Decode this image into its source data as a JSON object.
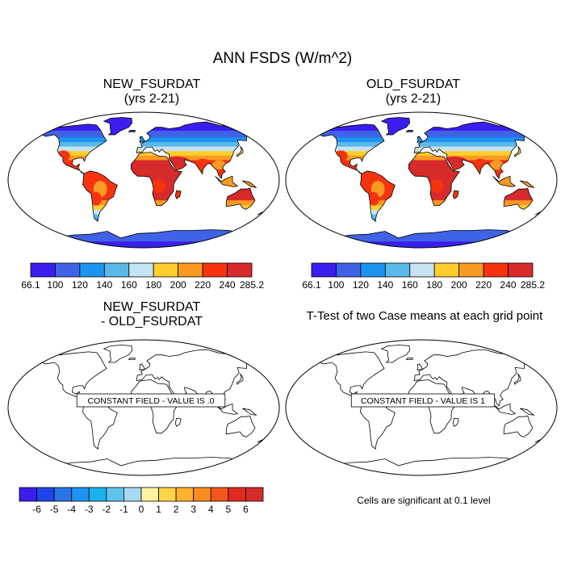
{
  "title": "ANN FSDS (W/m^2)",
  "panels": {
    "new": {
      "title_line1": "NEW_FSURDAT",
      "title_line2": "(yrs 2-21)"
    },
    "old": {
      "title_line1": "OLD_FSURDAT",
      "title_line2": "(yrs 2-21)"
    },
    "diff": {
      "title_line1": "NEW_FSURDAT",
      "title_line2": "- OLD_FSURDAT",
      "annotation": "CONSTANT FIELD - VALUE IS .0"
    },
    "ttest": {
      "title": "T-Test of two Case means at each grid point",
      "annotation": "CONSTANT FIELD - VALUE IS 1",
      "note": "Cells are significant at 0.1 level"
    }
  },
  "chart_data": [
    {
      "type": "heatmap",
      "name": "NEW_FSURDAT",
      "subtitle": "(yrs 2-21)",
      "variable": "ANN FSDS (W/m^2)",
      "colorbar": {
        "levels": [
          "66.1",
          "100",
          "120",
          "140",
          "160",
          "180",
          "200",
          "220",
          "240",
          "285.2"
        ],
        "colors": [
          "#3a1ef0",
          "#3f63e6",
          "#1b95f0",
          "#5ab9ea",
          "#c5e3f2",
          "#ffce2d",
          "#fa9a22",
          "#f7330f",
          "#d72a2a"
        ]
      },
      "colorbar_ticks": [
        "66.1",
        "100",
        "120",
        "140",
        "160",
        "180",
        "200",
        "220",
        "240",
        "285.2"
      ]
    },
    {
      "type": "heatmap",
      "name": "OLD_FSURDAT",
      "subtitle": "(yrs 2-21)",
      "variable": "ANN FSDS (W/m^2)",
      "colorbar_ticks": [
        "66.1",
        "100",
        "120",
        "140",
        "160",
        "180",
        "200",
        "220",
        "240",
        "285.2"
      ]
    },
    {
      "type": "heatmap",
      "name": "NEW_FSURDAT - OLD_FSURDAT",
      "constant_value": 0,
      "colorbar": {
        "levels": [
          "-6",
          "-5",
          "-4",
          "-3",
          "-2",
          "-1",
          "0",
          "1",
          "2",
          "3",
          "4",
          "5",
          "6"
        ],
        "colors": [
          "#3a1ef0",
          "#1f45e8",
          "#2774e6",
          "#1a94f2",
          "#19b2ef",
          "#5ec4ee",
          "#a7d8f2",
          "#fff3a0",
          "#ffd44a",
          "#ffb22d",
          "#fa8c1f",
          "#f3561b",
          "#e02a1f",
          "#d72a2a"
        ]
      },
      "colorbar_ticks": [
        "-6",
        "-5",
        "-4",
        "-3",
        "-2",
        "-1",
        "0",
        "1",
        "2",
        "3",
        "4",
        "5",
        "6"
      ]
    },
    {
      "type": "heatmap",
      "name": "T-Test of two Case means at each grid point",
      "constant_value": 1,
      "significance_level": 0.1
    }
  ]
}
